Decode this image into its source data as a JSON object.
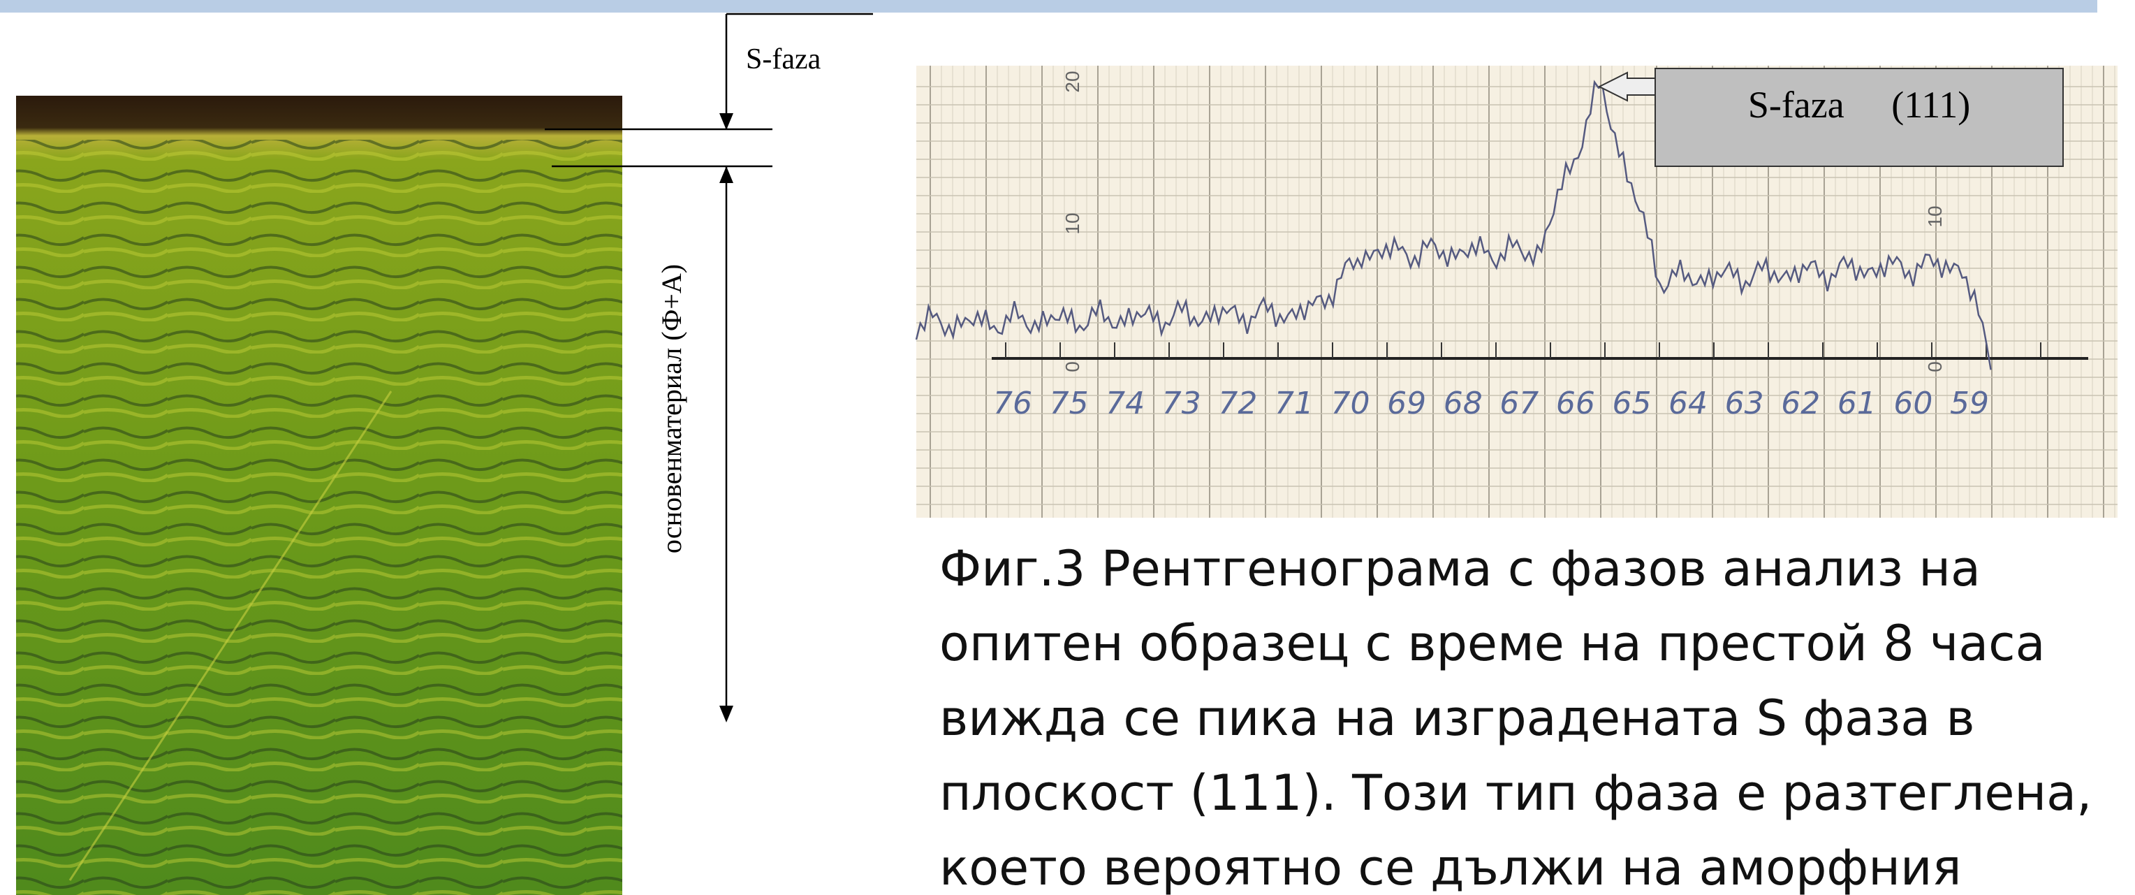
{
  "annotations": {
    "surface_layer": "S-faza",
    "base_material": "основенматериал  (Ф+А)"
  },
  "diffractogram": {
    "peak_label": "S-faza     (111)",
    "scale_labels": [
      "20",
      "10",
      "0",
      "10",
      "0"
    ],
    "angle_labels": [
      "76",
      "75",
      "74",
      "73",
      "72",
      "71",
      "70",
      "69",
      "68",
      "67",
      "66",
      "65",
      "64",
      "63",
      "62",
      "61",
      "60",
      "59"
    ]
  },
  "caption": {
    "lines": [
      "Фиг.3 Рентгенограма с фазов анализ на",
      "опитен образец с време на престой 8 часа",
      "вижда се пика на изградената S фаза в",
      "плоскост (111). Този тип фаза е разтеглена,",
      "което вероятно се дължи на аморфния"
    ]
  }
}
